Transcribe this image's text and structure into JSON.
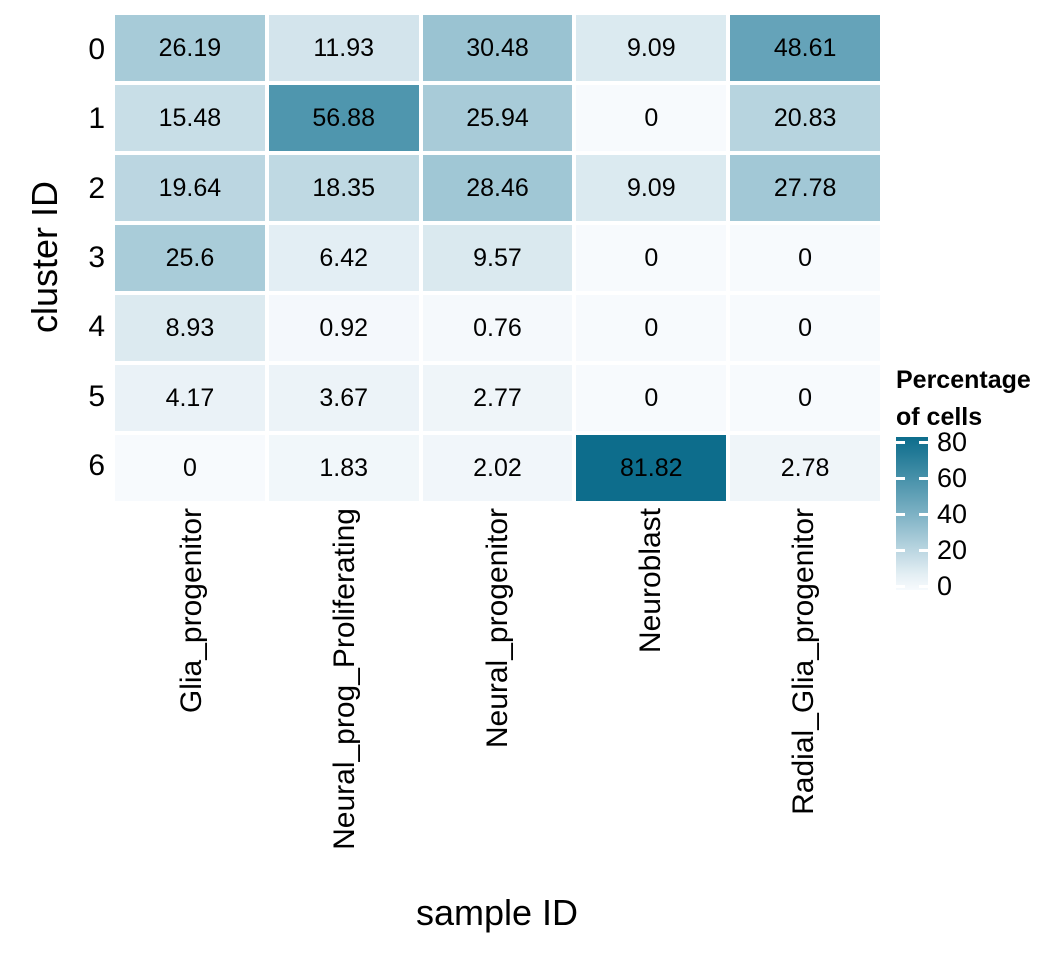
{
  "chart_data": {
    "type": "heatmap",
    "xlabel": "sample ID",
    "ylabel": "cluster ID",
    "categories_x": [
      "Glia_progenitor",
      "Neural_prog_Proliferating",
      "Neural_progenitor",
      "Neuroblast",
      "Radial_Glia_progenitor"
    ],
    "categories_y": [
      "0",
      "1",
      "2",
      "3",
      "4",
      "5",
      "6"
    ],
    "values": [
      [
        26.19,
        11.93,
        30.48,
        9.09,
        48.61
      ],
      [
        15.48,
        56.88,
        25.94,
        0,
        20.83
      ],
      [
        19.64,
        18.35,
        28.46,
        9.09,
        27.78
      ],
      [
        25.6,
        6.42,
        9.57,
        0,
        0
      ],
      [
        8.93,
        0.92,
        0.76,
        0,
        0
      ],
      [
        4.17,
        3.67,
        2.77,
        0,
        0
      ],
      [
        0,
        1.83,
        2.02,
        81.82,
        2.78
      ]
    ],
    "legend": {
      "title_line1": "Percentage",
      "title_line2": "of cells",
      "ticks": [
        80,
        60,
        40,
        20,
        0
      ]
    },
    "colors": {
      "low": "#f7fafd",
      "mid": "#7ab0c3",
      "high": "#0d6d8c"
    },
    "domain": [
      0,
      81.82
    ],
    "grid": "off",
    "legend_position": "right"
  }
}
